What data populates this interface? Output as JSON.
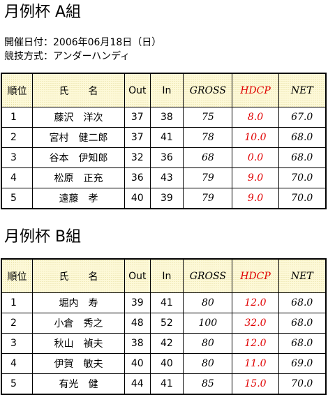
{
  "info": [
    "開催日付：2006年06月18日（日）",
    "競技方式：アンダーハンディ"
  ],
  "sections": [
    {
      "title": "月例杯 A組",
      "table": {
        "header": [
          "順位",
          "氏　　名",
          "Out",
          "In",
          "GROSS",
          "HDCP",
          "NET"
        ],
        "rows": [
          [
            "1",
            "藤沢　洋次",
            "37",
            "38",
            "75",
            "8.0",
            "67.0"
          ],
          [
            "2",
            "宮村　健二郎",
            "37",
            "41",
            "78",
            "10.0",
            "68.0"
          ],
          [
            "3",
            "谷本　伊知郎",
            "32",
            "36",
            "68",
            "0.0",
            "68.0"
          ],
          [
            "4",
            "松原　正充",
            "36",
            "43",
            "79",
            "9.0",
            "70.0"
          ],
          [
            "5",
            "遠藤　孝",
            "40",
            "39",
            "79",
            "9.0",
            "70.0"
          ]
        ]
      }
    },
    {
      "title": "月例杯 B組",
      "table": {
        "header": [
          "順位",
          "氏　　名",
          "Out",
          "In",
          "GROSS",
          "HDCP",
          "NET"
        ],
        "rows": [
          [
            "1",
            "堀内　寿",
            "39",
            "41",
            "80",
            "12.0",
            "68.0"
          ],
          [
            "2",
            "小倉　秀之",
            "48",
            "52",
            "100",
            "32.0",
            "68.0"
          ],
          [
            "3",
            "秋山　禎夫",
            "38",
            "42",
            "80",
            "12.0",
            "68.0"
          ],
          [
            "4",
            "伊賀　敏夫",
            "40",
            "40",
            "80",
            "11.0",
            "69.0"
          ],
          [
            "5",
            "有光　健",
            "44",
            "41",
            "85",
            "15.0",
            "70.0"
          ]
        ]
      }
    }
  ]
}
